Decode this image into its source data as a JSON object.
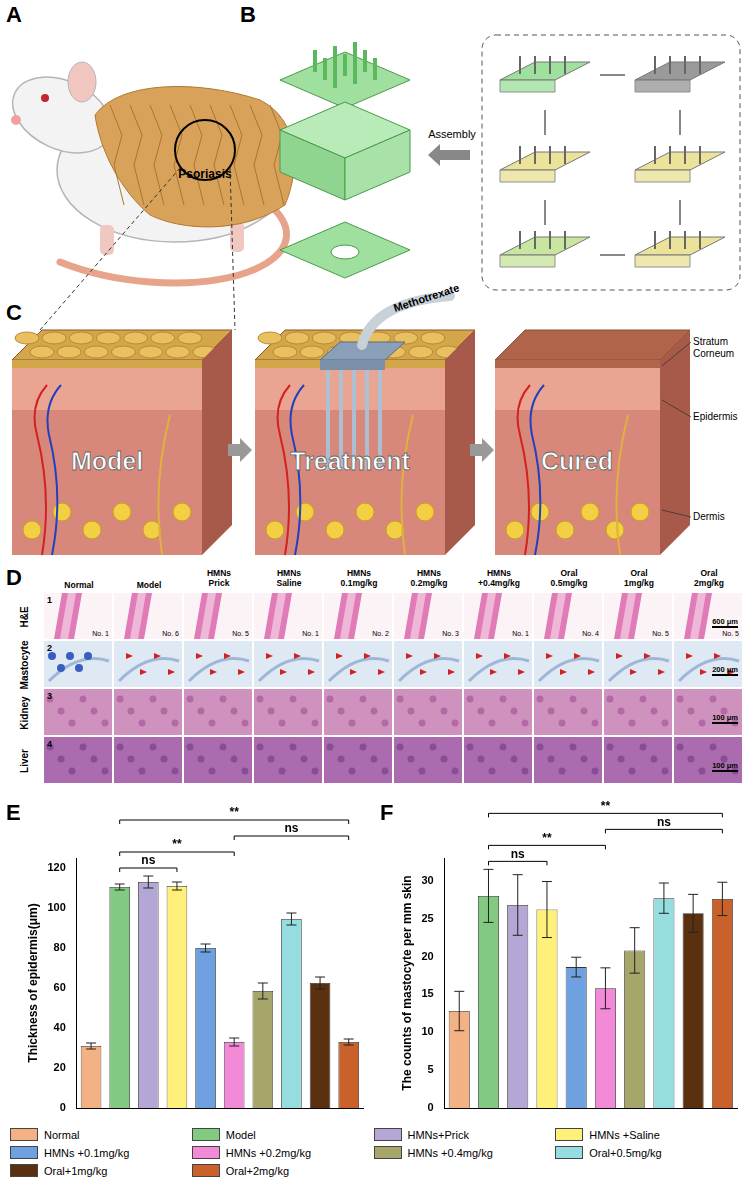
{
  "panels": {
    "A": {
      "label": "A",
      "texts": [
        "Psoriasis"
      ]
    },
    "B": {
      "label": "B",
      "texts": [
        "Assembly"
      ]
    },
    "C": {
      "label": "C",
      "stages": [
        "Model",
        "Treatment",
        "Cured"
      ],
      "drug": "Methotrexate",
      "layers": [
        "Stratum Corneum",
        "Epidermis",
        "Dermis"
      ]
    },
    "D": {
      "label": "D",
      "columns": [
        [
          "Normal"
        ],
        [
          "Model"
        ],
        [
          "HMNs",
          "Prick"
        ],
        [
          "HMNs",
          "Saline"
        ],
        [
          "HMNs",
          "0.1mg/kg"
        ],
        [
          "HMNs",
          "0.2mg/kg"
        ],
        [
          "HMNs",
          "+0.4mg/kg"
        ],
        [
          "Oral",
          "0.5mg/kg"
        ],
        [
          "Oral",
          "1mg/kg"
        ],
        [
          "Oral",
          "2mg/kg"
        ]
      ],
      "rows": [
        {
          "number": "1",
          "name": "H&E",
          "samples": [
            "No. 1",
            "No. 6",
            "No. 5",
            "No. 1",
            "No. 2",
            "No. 3",
            "No. 1",
            "No. 4",
            "No. 5",
            "No. 5"
          ],
          "scale_bar": "600 μm"
        },
        {
          "number": "2",
          "name": "Mastocyte",
          "scale_bar": "200 μm"
        },
        {
          "number": "3",
          "name": "Kidney",
          "scale_bar": "100 μm"
        },
        {
          "number": "4",
          "name": "Liver",
          "scale_bar": "100 μm"
        }
      ]
    }
  },
  "chart_data": [
    {
      "panel": "E",
      "type": "bar",
      "ylabel": "Thickness of epidermis(μm)",
      "categories": [
        "Normal",
        "Model",
        "HMNs+Prick",
        "HMNs +Saline",
        "HMNs +0.1mg/kg",
        "HMNs +0.2mg/kg",
        "HMNs +0.4mg/kg",
        "Oral+0.5mg/kg",
        "Oral+1mg/kg",
        "Oral+2mg/kg"
      ],
      "values": [
        31,
        110.5,
        113,
        111,
        80,
        33,
        58.5,
        94.5,
        62.5,
        33
      ],
      "errors": [
        1.5,
        1.5,
        3,
        2,
        2,
        2,
        4,
        3,
        3,
        1.5
      ],
      "colors": [
        "#f4b183",
        "#82c982",
        "#b4a7d6",
        "#fff07a",
        "#6fa0e0",
        "#f28ad8",
        "#a6a56a",
        "#96dde0",
        "#5a3010",
        "#c8622a"
      ],
      "ylim": [
        0,
        125
      ],
      "yticks": [
        0,
        20,
        40,
        60,
        80,
        100,
        120
      ],
      "grid": false,
      "tick_labels": "y",
      "legend": "bottom",
      "annotations": [
        {
          "from": "Model",
          "to": "HMNs +Saline",
          "label": "ns"
        },
        {
          "from": "Model",
          "to": "HMNs +0.2mg/kg",
          "label": "**"
        },
        {
          "from": "Model",
          "to": "Oral+2mg/kg",
          "label": "**"
        },
        {
          "from": "HMNs +0.2mg/kg",
          "to": "Oral+2mg/kg",
          "label": "ns"
        }
      ]
    },
    {
      "panel": "F",
      "type": "bar",
      "ylabel": "The counts of mastocyte per mm skin",
      "categories": [
        "Normal",
        "Model",
        "HMNs+Prick",
        "HMNs +Saline",
        "HMNs +0.1mg/kg",
        "HMNs +0.2mg/kg",
        "HMNs +0.4mg/kg",
        "Oral+0.5mg/kg",
        "Oral+1mg/kg",
        "Oral+2mg/kg"
      ],
      "values": [
        12.8,
        28,
        26.8,
        26.2,
        18.6,
        15.8,
        20.8,
        27.7,
        25.7,
        27.6
      ],
      "errors": [
        2.6,
        3.5,
        4,
        3.7,
        1.3,
        2.7,
        3,
        2,
        2.5,
        2.2
      ],
      "colors": [
        "#f4b183",
        "#82c982",
        "#b4a7d6",
        "#fff07a",
        "#6fa0e0",
        "#f28ad8",
        "#a6a56a",
        "#96dde0",
        "#5a3010",
        "#c8622a"
      ],
      "ylim": [
        0,
        33
      ],
      "yticks": [
        0,
        5,
        10,
        15,
        20,
        25,
        30
      ],
      "grid": false,
      "tick_labels": "y",
      "annotations": [
        {
          "from": "Model",
          "to": "HMNs +Saline",
          "label": "ns"
        },
        {
          "from": "Model",
          "to": "HMNs +0.2mg/kg",
          "label": "**"
        },
        {
          "from": "Model",
          "to": "Oral+2mg/kg",
          "label": "**"
        },
        {
          "from": "HMNs +0.2mg/kg",
          "to": "Oral+2mg/kg",
          "label": "ns"
        }
      ]
    }
  ]
}
